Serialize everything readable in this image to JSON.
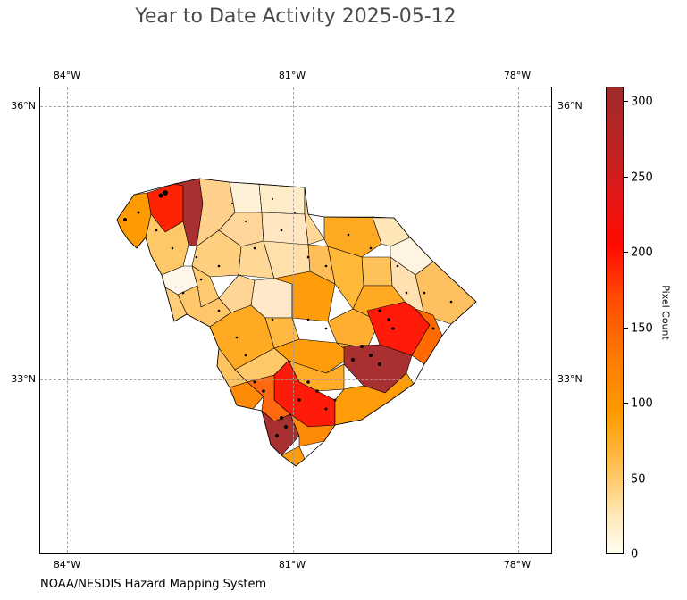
{
  "title": "Year to Date Activity 2025-05-12",
  "footer": "NOAA/NESDIS Hazard Mapping System",
  "map": {
    "lon_ticks": [
      "84°W",
      "81°W",
      "78°W"
    ],
    "lat_ticks": [
      "36°N",
      "33°N"
    ],
    "state": "South Carolina"
  },
  "colorbar": {
    "label": "Pixel Count",
    "ticks": [
      "0",
      "50",
      "100",
      "150",
      "200",
      "250",
      "300"
    ],
    "min": 0,
    "max": 310,
    "colors": [
      "#fffdf0",
      "#ffcd75",
      "#ff9a00",
      "#ff7a00",
      "#ff0a00",
      "#a02a2a"
    ]
  }
}
